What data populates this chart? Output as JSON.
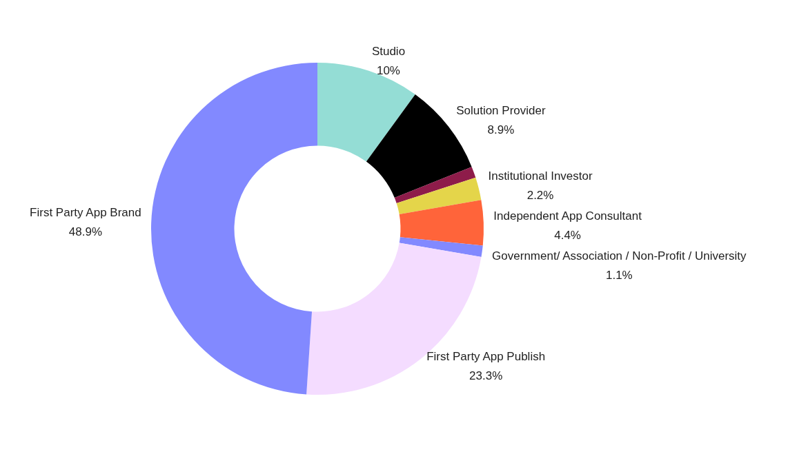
{
  "chart_data": {
    "type": "donut",
    "categories": [
      "Studio",
      "Solution Provider",
      null,
      "Institutional Investor",
      "Independent App Consultant",
      "Government/ Association / Non-Profit / University",
      "First Party App Publish",
      "First Party App Brand"
    ],
    "values": [
      10,
      8.9,
      1.1,
      2.2,
      4.4,
      1.1,
      23.3,
      48.9
    ],
    "colors": [
      "#94ddd5",
      "#000000",
      "#8e1c4a",
      "#e4d54a",
      "#ff643a",
      "#8289ff",
      "#f4dcff",
      "#8289ff"
    ],
    "value_labels": [
      "10%",
      "8.9%",
      null,
      "2.2%",
      "4.4%",
      "1.1%",
      "23.3%",
      "48.9%"
    ],
    "legend": false
  }
}
